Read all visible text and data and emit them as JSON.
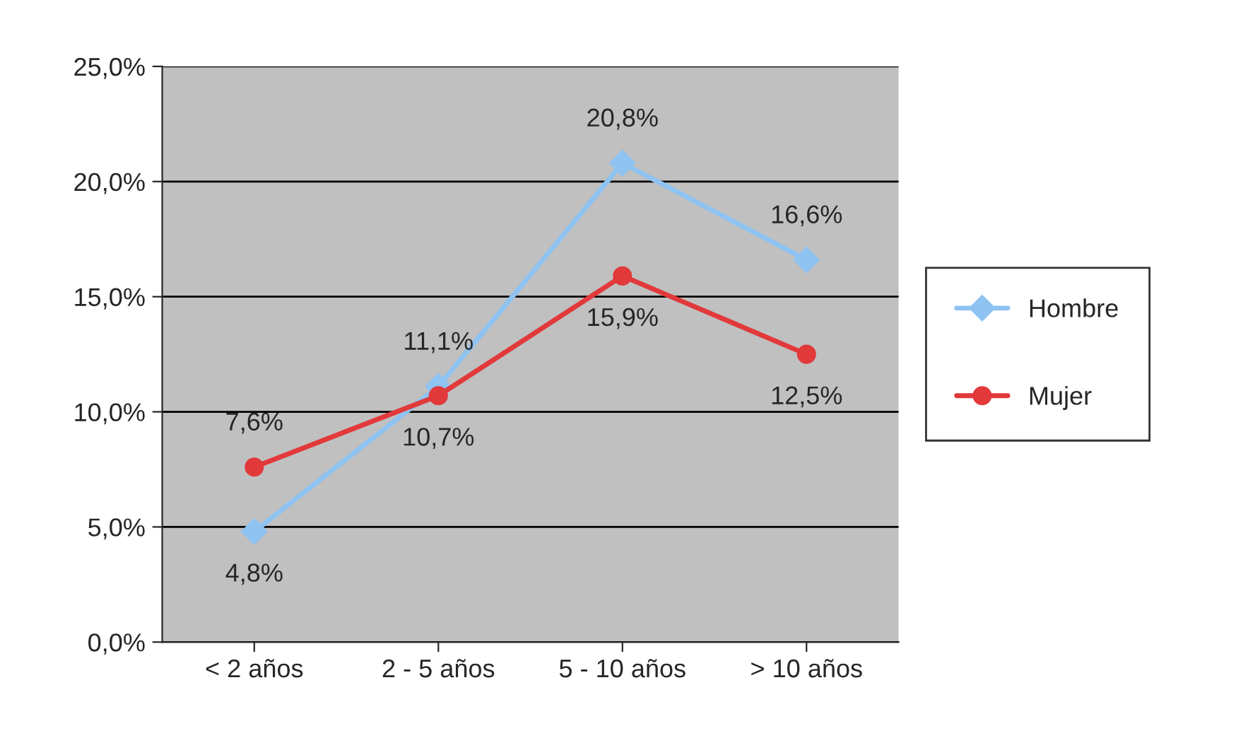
{
  "chart_data": {
    "type": "line",
    "categories": [
      "< 2 años",
      "2 - 5 años",
      "5 - 10 años",
      "> 10 años"
    ],
    "series": [
      {
        "name": "Hombre",
        "color": "#8ec3f2",
        "marker": "diamond",
        "values": [
          4.8,
          11.1,
          20.8,
          16.6
        ],
        "value_labels": [
          "4,8%",
          "11,1%",
          "20,8%",
          "16,6%"
        ]
      },
      {
        "name": "Mujer",
        "color": "#e2393b",
        "marker": "circle",
        "values": [
          7.6,
          10.7,
          15.9,
          12.5
        ],
        "value_labels": [
          "7,6%",
          "10,7%",
          "15,9%",
          "12,5%"
        ]
      }
    ],
    "ylim": [
      0,
      25
    ],
    "yticks": [
      {
        "value": 0,
        "label": "0,0%"
      },
      {
        "value": 5,
        "label": "5,0%"
      },
      {
        "value": 10,
        "label": "10,0%"
      },
      {
        "value": 15,
        "label": "15,0%"
      },
      {
        "value": 20,
        "label": "20,0%"
      },
      {
        "value": 25,
        "label": "25,0%"
      }
    ],
    "grid": "y",
    "legend": "right"
  }
}
